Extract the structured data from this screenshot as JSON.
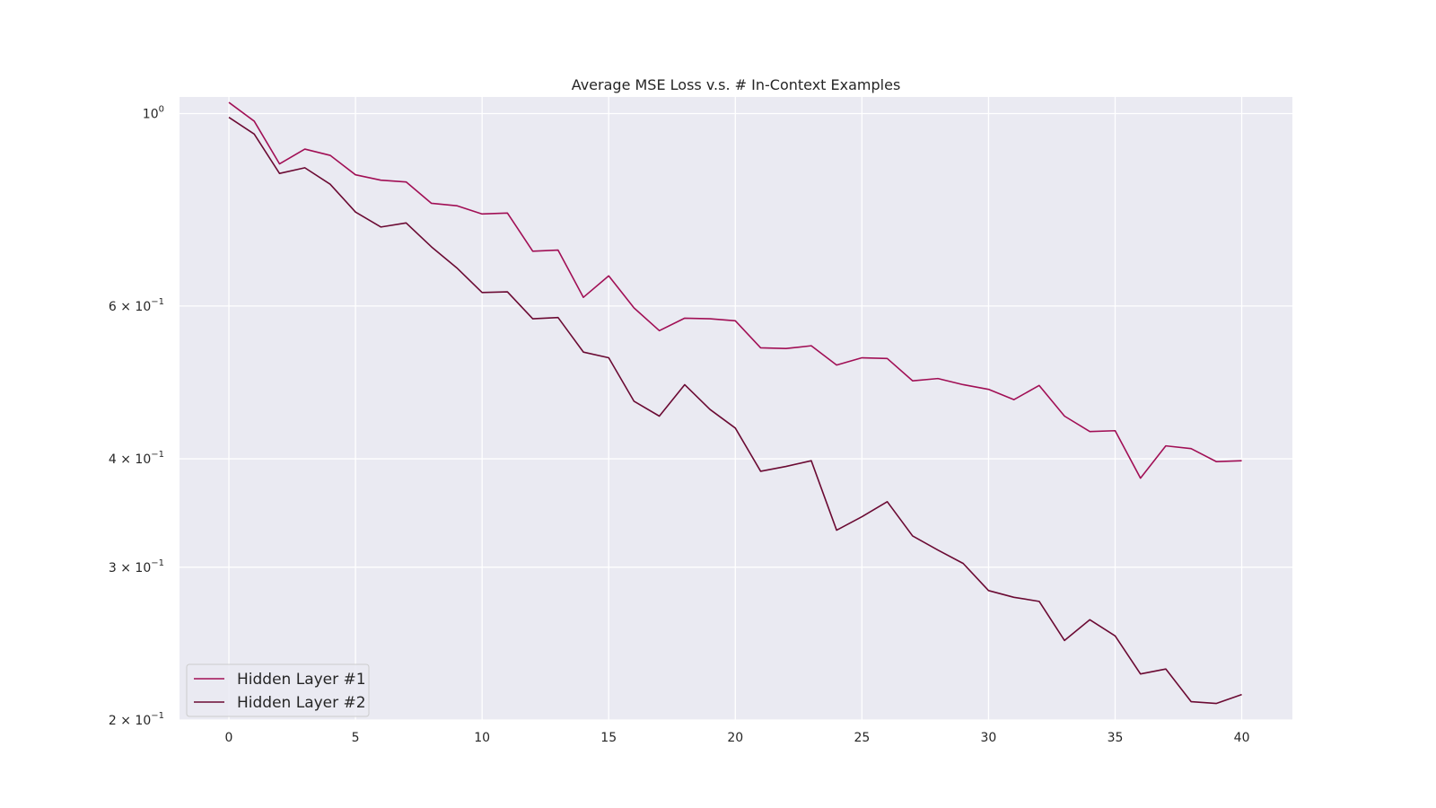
{
  "chart_data": {
    "type": "line",
    "title": "Average MSE Loss v.s. # In-Context Examples",
    "xlabel": "",
    "ylabel": "",
    "x": [
      0,
      1,
      2,
      3,
      4,
      5,
      6,
      7,
      8,
      9,
      10,
      11,
      12,
      13,
      14,
      15,
      16,
      17,
      18,
      19,
      20,
      21,
      22,
      23,
      24,
      25,
      26,
      27,
      28,
      29,
      30,
      31,
      32,
      33,
      34,
      35,
      36,
      37,
      38,
      39,
      40
    ],
    "series": [
      {
        "name": "Hidden Layer #1",
        "color": "#a10f55",
        "values": [
          1.03,
          0.98,
          0.875,
          0.91,
          0.895,
          0.85,
          0.838,
          0.834,
          0.788,
          0.783,
          0.766,
          0.768,
          0.694,
          0.696,
          0.614,
          0.65,
          0.597,
          0.562,
          0.581,
          0.58,
          0.577,
          0.537,
          0.536,
          0.54,
          0.513,
          0.523,
          0.522,
          0.492,
          0.495,
          0.487,
          0.481,
          0.468,
          0.486,
          0.448,
          0.43,
          0.431,
          0.38,
          0.414,
          0.411,
          0.397,
          0.398
        ]
      },
      {
        "name": "Hidden Layer #2",
        "color": "#6b0a33",
        "values": [
          0.99,
          0.947,
          0.853,
          0.866,
          0.829,
          0.77,
          0.74,
          0.748,
          0.702,
          0.664,
          0.622,
          0.623,
          0.58,
          0.582,
          0.531,
          0.523,
          0.466,
          0.448,
          0.487,
          0.456,
          0.434,
          0.387,
          0.392,
          0.398,
          0.331,
          0.343,
          0.357,
          0.326,
          0.314,
          0.303,
          0.282,
          0.277,
          0.274,
          0.247,
          0.261,
          0.25,
          0.226,
          0.229,
          0.21,
          0.209,
          0.214
        ]
      }
    ],
    "xlim": [
      -1.95,
      42
    ],
    "ylim": [
      0.2,
      1.045
    ],
    "yscale": "log",
    "x_ticks": [
      0,
      5,
      10,
      15,
      20,
      25,
      30,
      35,
      40
    ],
    "y_ticks": [
      {
        "value": 1.0,
        "base": "10",
        "exp": "0"
      },
      {
        "value": 0.6,
        "base": "6 × 10",
        "exp": "−1"
      },
      {
        "value": 0.4,
        "base": "4 × 10",
        "exp": "−1"
      },
      {
        "value": 0.3,
        "base": "3 × 10",
        "exp": "−1"
      },
      {
        "value": 0.2,
        "base": "2 × 10",
        "exp": "−1"
      }
    ],
    "grid": true,
    "legend_position": "lower-left",
    "background_color": "#eaeaf2",
    "grid_color": "#ffffff"
  }
}
